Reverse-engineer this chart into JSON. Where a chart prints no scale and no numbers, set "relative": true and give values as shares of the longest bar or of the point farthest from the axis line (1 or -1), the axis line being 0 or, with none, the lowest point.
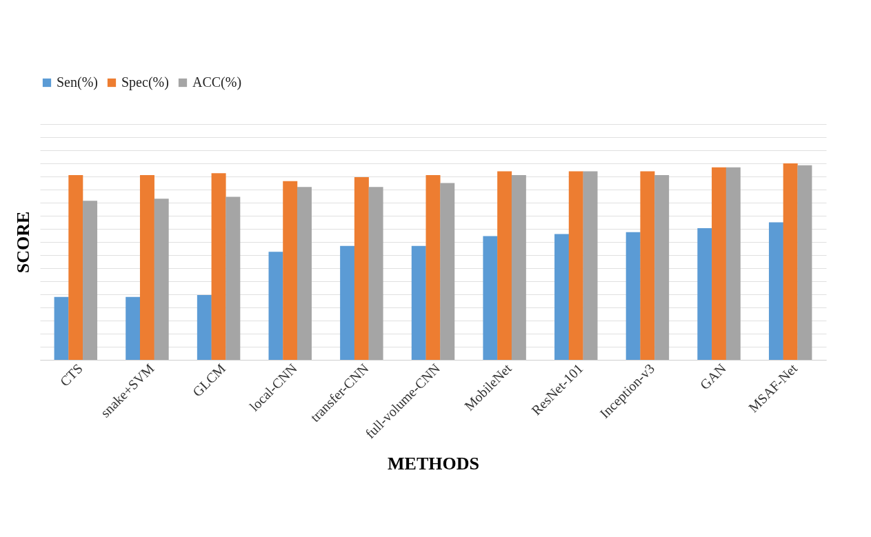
{
  "chart_data": {
    "type": "bar",
    "relative": true,
    "xlabel": "METHODS",
    "ylabel": "SCORE",
    "legend": "top",
    "grid": "y",
    "categories": [
      "CTS",
      "snake+SVM",
      "GLCM",
      "local-CNN",
      "transfer-CNN",
      "full-volume-CNN",
      "MobileNet",
      "ResNet-101",
      "Inception-v3",
      "GAN",
      "MSAF-Net"
    ],
    "series": [
      {
        "name": "Sen(%)",
        "color": "#5b9bd5",
        "values": [
          0.32,
          0.32,
          0.33,
          0.55,
          0.58,
          0.58,
          0.63,
          0.64,
          0.65,
          0.67,
          0.7
        ]
      },
      {
        "name": "Spec(%)",
        "color": "#ed7d31",
        "values": [
          0.94,
          0.94,
          0.95,
          0.91,
          0.93,
          0.94,
          0.96,
          0.96,
          0.96,
          0.98,
          1
        ]
      },
      {
        "name": "ACC(%)",
        "color": "#a5a5a5",
        "values": [
          0.81,
          0.82,
          0.83,
          0.88,
          0.88,
          0.9,
          0.94,
          0.96,
          0.94,
          0.98,
          0.99
        ]
      }
    ]
  }
}
